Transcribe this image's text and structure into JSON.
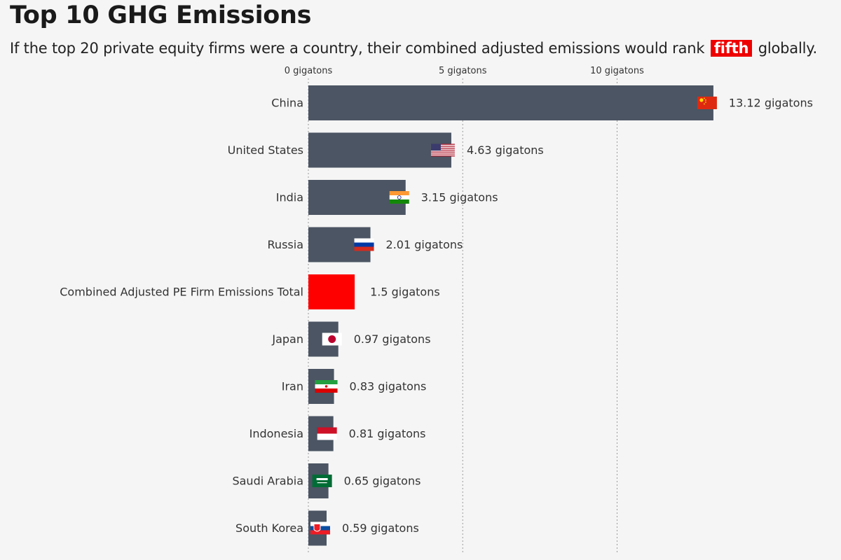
{
  "title": "Top 10 GHG Emissions",
  "subtitle": {
    "before": "If the top 20 private equity firms were a country, their combined adjusted emissions would rank",
    "highlight": "fifth",
    "after": "globally."
  },
  "colors": {
    "bar": "#4b5563",
    "highlight_bar": "#ff0000",
    "background": "#f5f5f5",
    "gridline": "#9a9a9a"
  },
  "chart_data": {
    "type": "bar",
    "orientation": "horizontal",
    "title": "Top 10 GHG Emissions",
    "xlim": [
      0,
      13.12
    ],
    "x_ticks": [
      {
        "value": 0,
        "label": "0 gigatons"
      },
      {
        "value": 5,
        "label": "5 gigatons"
      },
      {
        "value": 10,
        "label": "10 gigatons"
      }
    ],
    "grid": "vertical dotted",
    "legend": "none",
    "highlight_category": "Combined Adjusted PE Firm Emissions Total",
    "categories": [
      "China",
      "United States",
      "India",
      "Russia",
      "Combined Adjusted PE Firm Emissions Total",
      "Japan",
      "Iran",
      "Indonesia",
      "Saudi Arabia",
      "South Korea"
    ],
    "values": [
      13.12,
      4.63,
      3.15,
      2.01,
      1.5,
      0.97,
      0.83,
      0.81,
      0.65,
      0.59
    ],
    "value_labels": [
      "13.12 gigatons",
      "4.63 gigatons",
      "3.15 gigatons",
      "2.01 gigatons",
      "1.5 gigatons",
      "0.97 gigatons",
      "0.83 gigatons",
      "0.81 gigatons",
      "0.65 gigatons",
      "0.59 gigatons"
    ],
    "flags": [
      "china-flag-icon",
      "united-states-flag-icon",
      "india-flag-icon",
      "russia-flag-icon",
      "",
      "japan-flag-icon",
      "iran-flag-icon",
      "indonesia-flag-icon",
      "saudi-arabia-flag-icon",
      "slovakia-flag-icon"
    ]
  }
}
